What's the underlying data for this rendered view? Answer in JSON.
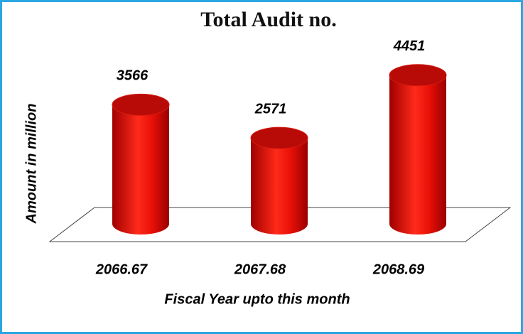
{
  "chart_data": {
    "type": "bar3d",
    "title": "Total Audit no.",
    "y_label": "Amount in million",
    "x_label": "Fiscal Year upto this month",
    "categories": [
      "2066.67",
      "2067.68",
      "2068.69"
    ],
    "values": [
      3566,
      2571,
      4451
    ],
    "color": "#e0100e"
  }
}
